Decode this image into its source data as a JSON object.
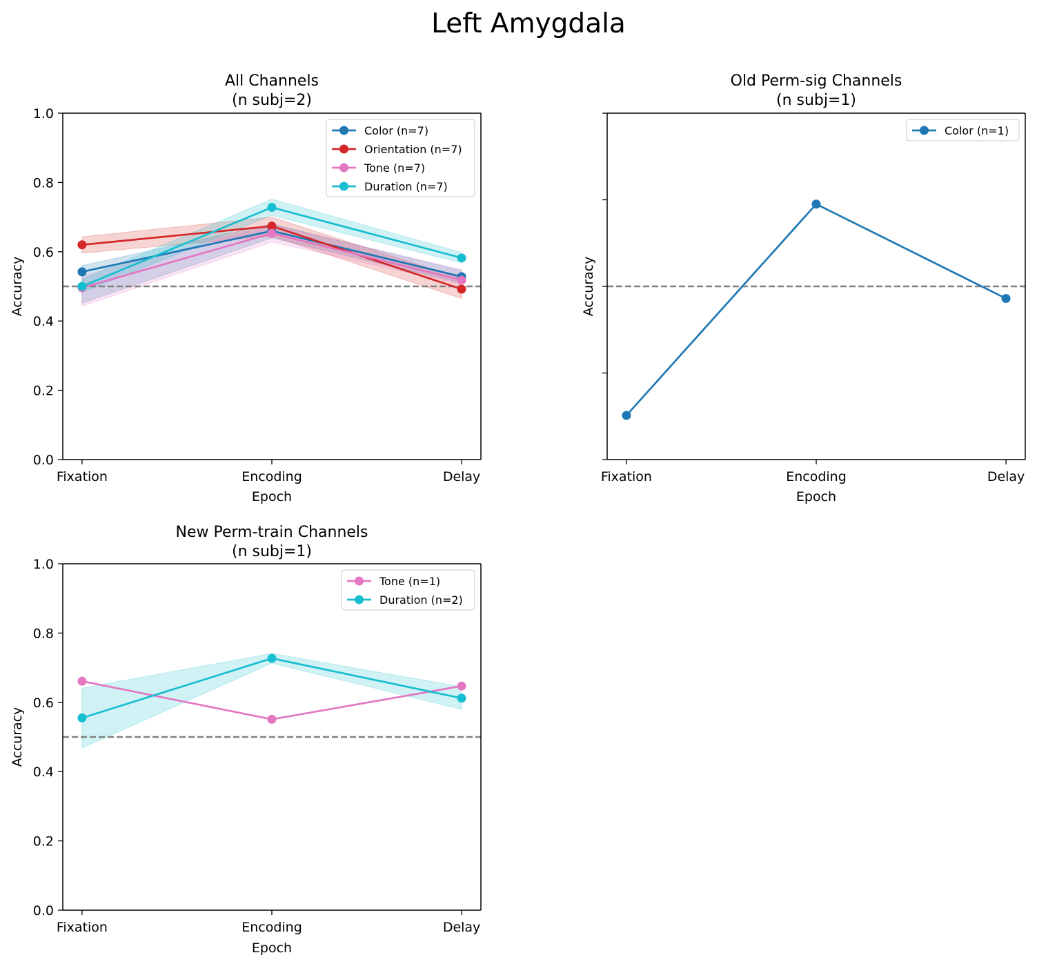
{
  "figure": {
    "suptitle": "Left Amygdala"
  },
  "colors": {
    "Color": "#1f77b4",
    "Orientation": "#d62728",
    "Tone": "#e377c2",
    "Duration": "#17becf",
    "chance_line": "#808080"
  },
  "chart_data": [
    {
      "id": "all",
      "type": "line",
      "title": [
        "All Channels",
        "(n subj=2)"
      ],
      "xlabel": "Epoch",
      "ylabel": "Accuracy",
      "categories": [
        "Fixation",
        "Encoding",
        "Delay"
      ],
      "ylim": [
        0,
        1
      ],
      "yticks": [
        "0.0",
        "0.2",
        "0.4",
        "0.6",
        "0.8",
        "1.0"
      ],
      "show_ytick_labels": true,
      "chance_level": 0.5,
      "legend": "top-right",
      "series": [
        {
          "name": "Color (n=7)",
          "color": "#1f77b4",
          "values": [
            0.542,
            0.66,
            0.528
          ],
          "lower": [
            0.452,
            0.64,
            0.51
          ],
          "upper": [
            0.56,
            0.68,
            0.545
          ]
        },
        {
          "name": "Orientation (n=7)",
          "color": "#d62728",
          "values": [
            0.62,
            0.674,
            0.492
          ],
          "lower": [
            0.596,
            0.645,
            0.465
          ],
          "upper": [
            0.643,
            0.7,
            0.522
          ]
        },
        {
          "name": "Tone (n=7)",
          "color": "#e377c2",
          "values": [
            0.496,
            0.653,
            0.518
          ],
          "lower": [
            0.443,
            0.628,
            0.505
          ],
          "upper": [
            0.53,
            0.678,
            0.548
          ]
        },
        {
          "name": "Duration (n=7)",
          "color": "#17becf",
          "values": [
            0.5,
            0.728,
            0.582
          ],
          "lower": [
            0.482,
            0.705,
            0.568
          ],
          "upper": [
            0.52,
            0.752,
            0.598
          ]
        }
      ]
    },
    {
      "id": "old",
      "type": "line",
      "title": [
        "Old Perm-sig Channels",
        "(n subj=1)"
      ],
      "xlabel": "Epoch",
      "ylabel": "Accuracy",
      "categories": [
        "Fixation",
        "Encoding",
        "Delay"
      ],
      "ylim": [
        0.3,
        0.7
      ],
      "yticks": [
        "",
        "",
        "",
        "",
        ""
      ],
      "show_ytick_labels": false,
      "chance_level": 0.5,
      "legend": "top-right",
      "series": [
        {
          "name": "Color (n=1)",
          "color": "#1f77b4",
          "values": [
            0.351,
            0.595,
            0.486
          ]
        }
      ]
    },
    {
      "id": "new",
      "type": "line",
      "title": [
        "New Perm-train Channels",
        "(n subj=1)"
      ],
      "xlabel": "Epoch",
      "ylabel": "Accuracy",
      "categories": [
        "Fixation",
        "Encoding",
        "Delay"
      ],
      "ylim": [
        0,
        1
      ],
      "yticks": [
        "0.0",
        "0.2",
        "0.4",
        "0.6",
        "0.8",
        "1.0"
      ],
      "show_ytick_labels": true,
      "chance_level": 0.5,
      "legend": "top-right",
      "series": [
        {
          "name": "Tone (n=1)",
          "color": "#e377c2",
          "values": [
            0.661,
            0.551,
            0.647
          ]
        },
        {
          "name": "Duration (n=2)",
          "color": "#17becf",
          "values": [
            0.555,
            0.727,
            0.612
          ],
          "lower": [
            0.468,
            0.713,
            0.58
          ],
          "upper": [
            0.641,
            0.741,
            0.645
          ]
        }
      ]
    }
  ]
}
